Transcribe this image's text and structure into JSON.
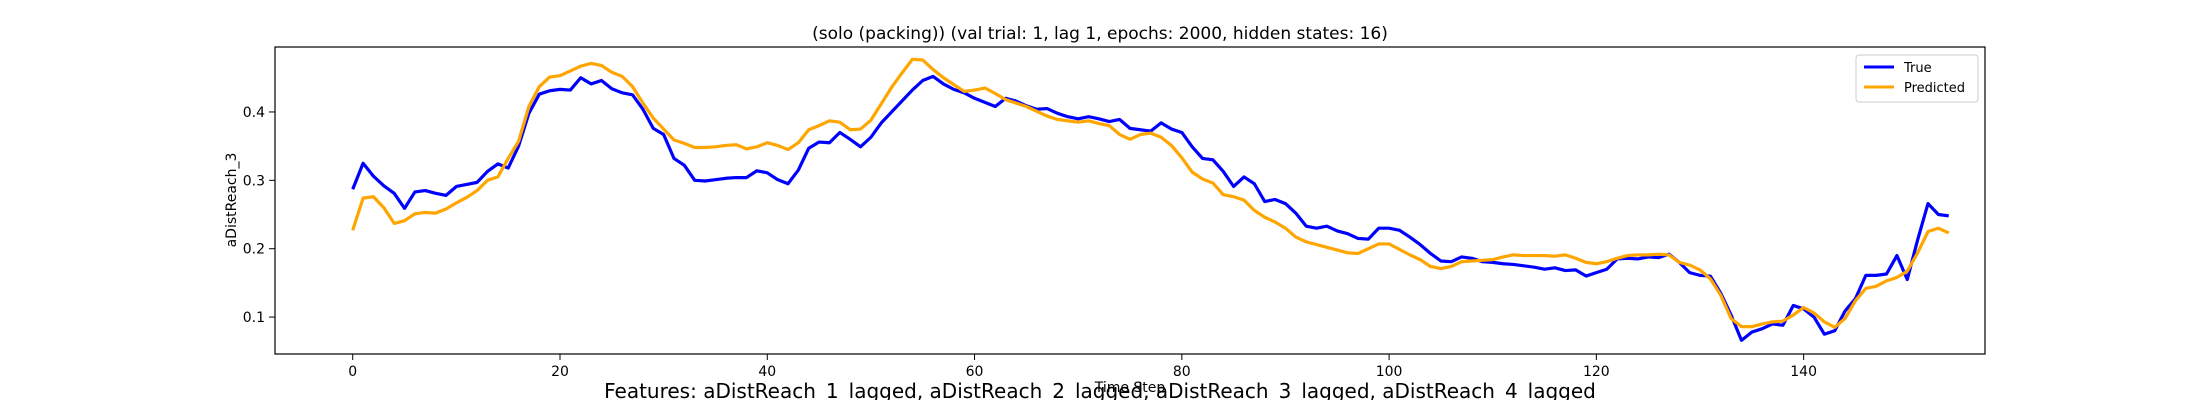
{
  "chart_data": {
    "type": "line",
    "title": "(solo (packing)) (val trial: 1, lag 1, epochs: 2000, hidden states: 16)",
    "xlabel": "Time Step",
    "ylabel": "aDistReach_3",
    "caption": "Features: aDistReach_1_lagged, aDistReach_2_lagged, aDistReach_3_lagged, aDistReach_4_lagged",
    "xlim": [
      -7.5,
      157.5
    ],
    "ylim": [
      0.046,
      0.495
    ],
    "xticks": [
      0,
      20,
      40,
      60,
      80,
      100,
      120,
      140
    ],
    "yticks": [
      0.1,
      0.2,
      0.3,
      0.4
    ],
    "ytick_labels": [
      "0.1",
      "0.2",
      "0.3",
      "0.4"
    ],
    "legend_position": "top-right",
    "series": [
      {
        "name": "True",
        "color": "#0000ff",
        "values": [
          0.287,
          0.325,
          0.306,
          0.292,
          0.281,
          0.259,
          0.283,
          0.285,
          0.281,
          0.278,
          0.291,
          0.294,
          0.297,
          0.313,
          0.324,
          0.318,
          0.35,
          0.398,
          0.426,
          0.431,
          0.433,
          0.432,
          0.45,
          0.441,
          0.446,
          0.434,
          0.428,
          0.425,
          0.404,
          0.376,
          0.367,
          0.332,
          0.322,
          0.3,
          0.299,
          0.301,
          0.303,
          0.304,
          0.304,
          0.314,
          0.311,
          0.301,
          0.295,
          0.315,
          0.347,
          0.356,
          0.355,
          0.37,
          0.36,
          0.349,
          0.363,
          0.384,
          0.4,
          0.416,
          0.432,
          0.446,
          0.452,
          0.441,
          0.433,
          0.428,
          0.42,
          0.414,
          0.408,
          0.42,
          0.416,
          0.409,
          0.404,
          0.405,
          0.398,
          0.393,
          0.39,
          0.393,
          0.39,
          0.386,
          0.389,
          0.376,
          0.374,
          0.372,
          0.384,
          0.375,
          0.37,
          0.349,
          0.332,
          0.33,
          0.313,
          0.291,
          0.305,
          0.295,
          0.269,
          0.272,
          0.266,
          0.252,
          0.233,
          0.23,
          0.233,
          0.226,
          0.222,
          0.215,
          0.214,
          0.23,
          0.23,
          0.227,
          0.217,
          0.206,
          0.193,
          0.182,
          0.181,
          0.188,
          0.186,
          0.181,
          0.18,
          0.178,
          0.177,
          0.175,
          0.173,
          0.17,
          0.172,
          0.168,
          0.169,
          0.16,
          0.165,
          0.17,
          0.185,
          0.186,
          0.185,
          0.188,
          0.187,
          0.192,
          0.18,
          0.165,
          0.161,
          0.16,
          0.135,
          0.103,
          0.066,
          0.078,
          0.083,
          0.09,
          0.088,
          0.117,
          0.112,
          0.1,
          0.075,
          0.08,
          0.109,
          0.127,
          0.161,
          0.161,
          0.163,
          0.19,
          0.155,
          0.213,
          0.266,
          0.25,
          0.248
        ]
      },
      {
        "name": "Predicted",
        "color": "#ffa500",
        "values": [
          0.227,
          0.274,
          0.276,
          0.26,
          0.237,
          0.241,
          0.251,
          0.253,
          0.252,
          0.258,
          0.267,
          0.275,
          0.285,
          0.3,
          0.305,
          0.332,
          0.357,
          0.408,
          0.437,
          0.451,
          0.453,
          0.46,
          0.467,
          0.471,
          0.468,
          0.458,
          0.452,
          0.437,
          0.413,
          0.391,
          0.375,
          0.359,
          0.354,
          0.348,
          0.348,
          0.349,
          0.351,
          0.352,
          0.346,
          0.349,
          0.355,
          0.351,
          0.345,
          0.355,
          0.374,
          0.38,
          0.387,
          0.385,
          0.374,
          0.375,
          0.388,
          0.412,
          0.436,
          0.457,
          0.477,
          0.476,
          0.462,
          0.45,
          0.44,
          0.43,
          0.432,
          0.435,
          0.427,
          0.418,
          0.413,
          0.408,
          0.401,
          0.394,
          0.389,
          0.387,
          0.385,
          0.387,
          0.383,
          0.38,
          0.367,
          0.36,
          0.367,
          0.369,
          0.363,
          0.351,
          0.333,
          0.312,
          0.302,
          0.296,
          0.279,
          0.276,
          0.271,
          0.256,
          0.246,
          0.239,
          0.23,
          0.217,
          0.21,
          0.206,
          0.202,
          0.198,
          0.194,
          0.193,
          0.2,
          0.207,
          0.207,
          0.199,
          0.191,
          0.184,
          0.174,
          0.171,
          0.174,
          0.181,
          0.182,
          0.183,
          0.184,
          0.188,
          0.191,
          0.19,
          0.19,
          0.19,
          0.189,
          0.191,
          0.186,
          0.18,
          0.178,
          0.181,
          0.186,
          0.19,
          0.191,
          0.191,
          0.192,
          0.191,
          0.18,
          0.176,
          0.169,
          0.156,
          0.132,
          0.098,
          0.086,
          0.086,
          0.09,
          0.093,
          0.094,
          0.103,
          0.114,
          0.106,
          0.093,
          0.085,
          0.098,
          0.124,
          0.142,
          0.145,
          0.153,
          0.158,
          0.167,
          0.194,
          0.225,
          0.23,
          0.223
        ]
      }
    ]
  }
}
